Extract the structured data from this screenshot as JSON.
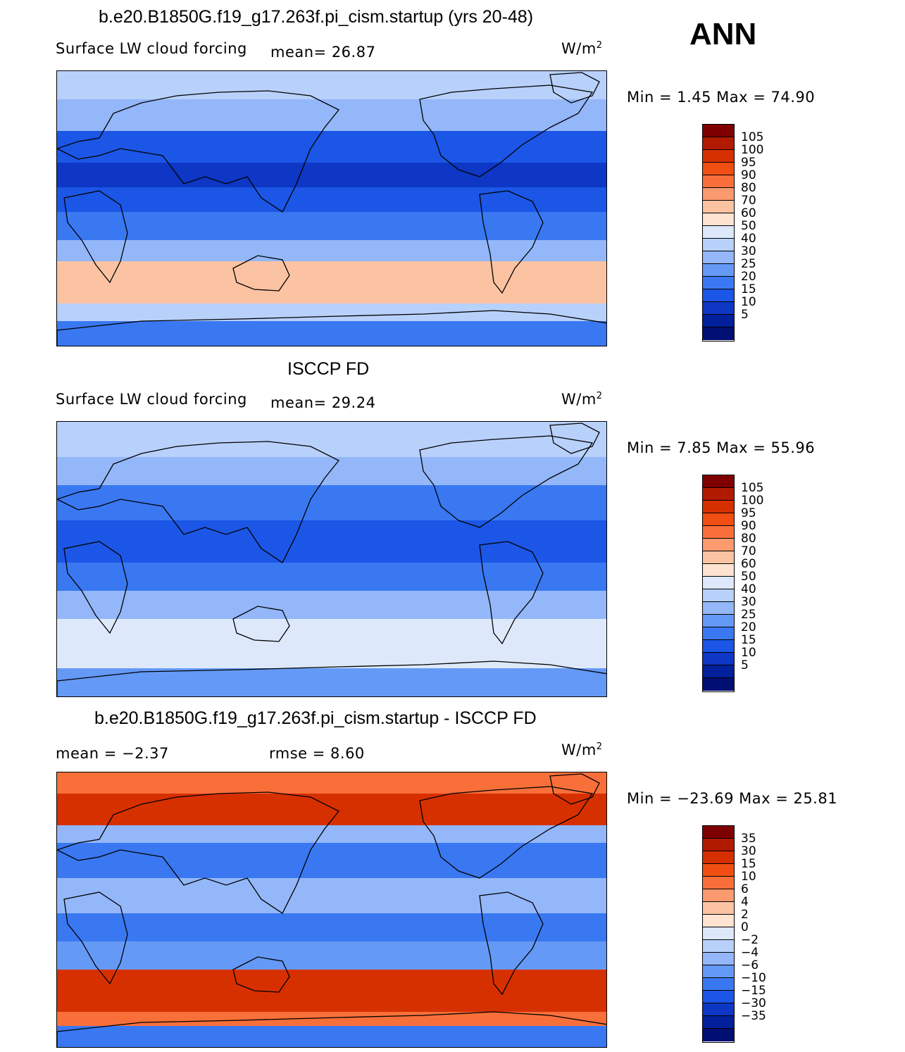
{
  "season": "ANN",
  "panels": [
    {
      "title": "b.e20.B1850G.f19_g17.263f.pi_cism.startup (yrs 20-48)",
      "variable": "Surface LW cloud forcing",
      "stat1": "mean=   26.87",
      "stat2": "",
      "units": "W/m",
      "units_exp": "2",
      "minmax": "Min =    1.45  Max =   74.90",
      "cbar_labels": [
        "105",
        "100",
        "95",
        "90",
        "80",
        "70",
        "60",
        "50",
        "40",
        "30",
        "25",
        "20",
        "15",
        "10",
        "5"
      ],
      "cbar_colors": [
        "#7f0000",
        "#b21a00",
        "#d73000",
        "#f04e12",
        "#f96f3a",
        "#fb9a6e",
        "#fcc3a3",
        "#fde3d0",
        "#dde9fb",
        "#b8d1fb",
        "#93b7f9",
        "#6599f6",
        "#3a78f2",
        "#1b56e6",
        "#0d37c4",
        "#021f9c",
        "#020f72"
      ],
      "bands": [
        {
          "y": [
            0,
            40
          ],
          "c": "#b8d1fb"
        },
        {
          "y": [
            40,
            85
          ],
          "c": "#93b7f9"
        },
        {
          "y": [
            85,
            130
          ],
          "c": "#1b56e6"
        },
        {
          "y": [
            130,
            165
          ],
          "c": "#0d37c4"
        },
        {
          "y": [
            165,
            200
          ],
          "c": "#1b56e6"
        },
        {
          "y": [
            200,
            240
          ],
          "c": "#3a78f2"
        },
        {
          "y": [
            240,
            270
          ],
          "c": "#93b7f9"
        },
        {
          "y": [
            270,
            330
          ],
          "c": "#fcc3a3"
        },
        {
          "y": [
            330,
            355
          ],
          "c": "#b8d1fb"
        },
        {
          "y": [
            355,
            392
          ],
          "c": "#3a78f2"
        }
      ]
    },
    {
      "title": "ISCCP FD",
      "variable": "Surface LW cloud forcing",
      "stat1": "mean=   29.24",
      "stat2": "",
      "units": "W/m",
      "units_exp": "2",
      "minmax": "Min =    7.85  Max =   55.96",
      "cbar_labels": [
        "105",
        "100",
        "95",
        "90",
        "80",
        "70",
        "60",
        "50",
        "40",
        "30",
        "25",
        "20",
        "15",
        "10",
        "5"
      ],
      "cbar_colors": [
        "#7f0000",
        "#b21a00",
        "#d73000",
        "#f04e12",
        "#f96f3a",
        "#fb9a6e",
        "#fcc3a3",
        "#fde3d0",
        "#dde9fb",
        "#b8d1fb",
        "#93b7f9",
        "#6599f6",
        "#3a78f2",
        "#1b56e6",
        "#0d37c4",
        "#021f9c",
        "#020f72"
      ],
      "bands": [
        {
          "y": [
            0,
            50
          ],
          "c": "#b8d1fb"
        },
        {
          "y": [
            50,
            90
          ],
          "c": "#93b7f9"
        },
        {
          "y": [
            90,
            140
          ],
          "c": "#3a78f2"
        },
        {
          "y": [
            140,
            200
          ],
          "c": "#1b56e6"
        },
        {
          "y": [
            200,
            240
          ],
          "c": "#3a78f2"
        },
        {
          "y": [
            240,
            280
          ],
          "c": "#93b7f9"
        },
        {
          "y": [
            280,
            320
          ],
          "c": "#dde9fb"
        },
        {
          "y": [
            320,
            350
          ],
          "c": "#dde9fb"
        },
        {
          "y": [
            350,
            392
          ],
          "c": "#6599f6"
        }
      ]
    },
    {
      "title": "b.e20.B1850G.f19_g17.263f.pi_cism.startup - ISCCP FD",
      "variable": "",
      "stat1": "mean =   −2.37",
      "stat2": "rmse =    8.60",
      "units": "W/m",
      "units_exp": "2",
      "minmax": "Min = −23.69  Max =   25.81",
      "cbar_labels": [
        "35",
        "30",
        "15",
        "10",
        "6",
        "4",
        "2",
        "0",
        "−2",
        "−4",
        "−6",
        "−10",
        "−15",
        "−30",
        "−35"
      ],
      "cbar_colors": [
        "#7f0000",
        "#b21a00",
        "#d73000",
        "#f04e12",
        "#f96f3a",
        "#fb9a6e",
        "#fcc3a3",
        "#fde3d0",
        "#dde9fb",
        "#b8d1fb",
        "#93b7f9",
        "#6599f6",
        "#3a78f2",
        "#1b56e6",
        "#0d37c4",
        "#021f9c",
        "#020f72"
      ],
      "bands": [
        {
          "y": [
            0,
            30
          ],
          "c": "#f96f3a"
        },
        {
          "y": [
            30,
            75
          ],
          "c": "#d73000"
        },
        {
          "y": [
            75,
            100
          ],
          "c": "#93b7f9"
        },
        {
          "y": [
            100,
            150
          ],
          "c": "#3a78f2"
        },
        {
          "y": [
            150,
            200
          ],
          "c": "#93b7f9"
        },
        {
          "y": [
            200,
            240
          ],
          "c": "#3a78f2"
        },
        {
          "y": [
            240,
            280
          ],
          "c": "#6599f6"
        },
        {
          "y": [
            280,
            340
          ],
          "c": "#d73000"
        },
        {
          "y": [
            340,
            360
          ],
          "c": "#f96f3a"
        },
        {
          "y": [
            360,
            392
          ],
          "c": "#3a78f2"
        }
      ]
    }
  ]
}
